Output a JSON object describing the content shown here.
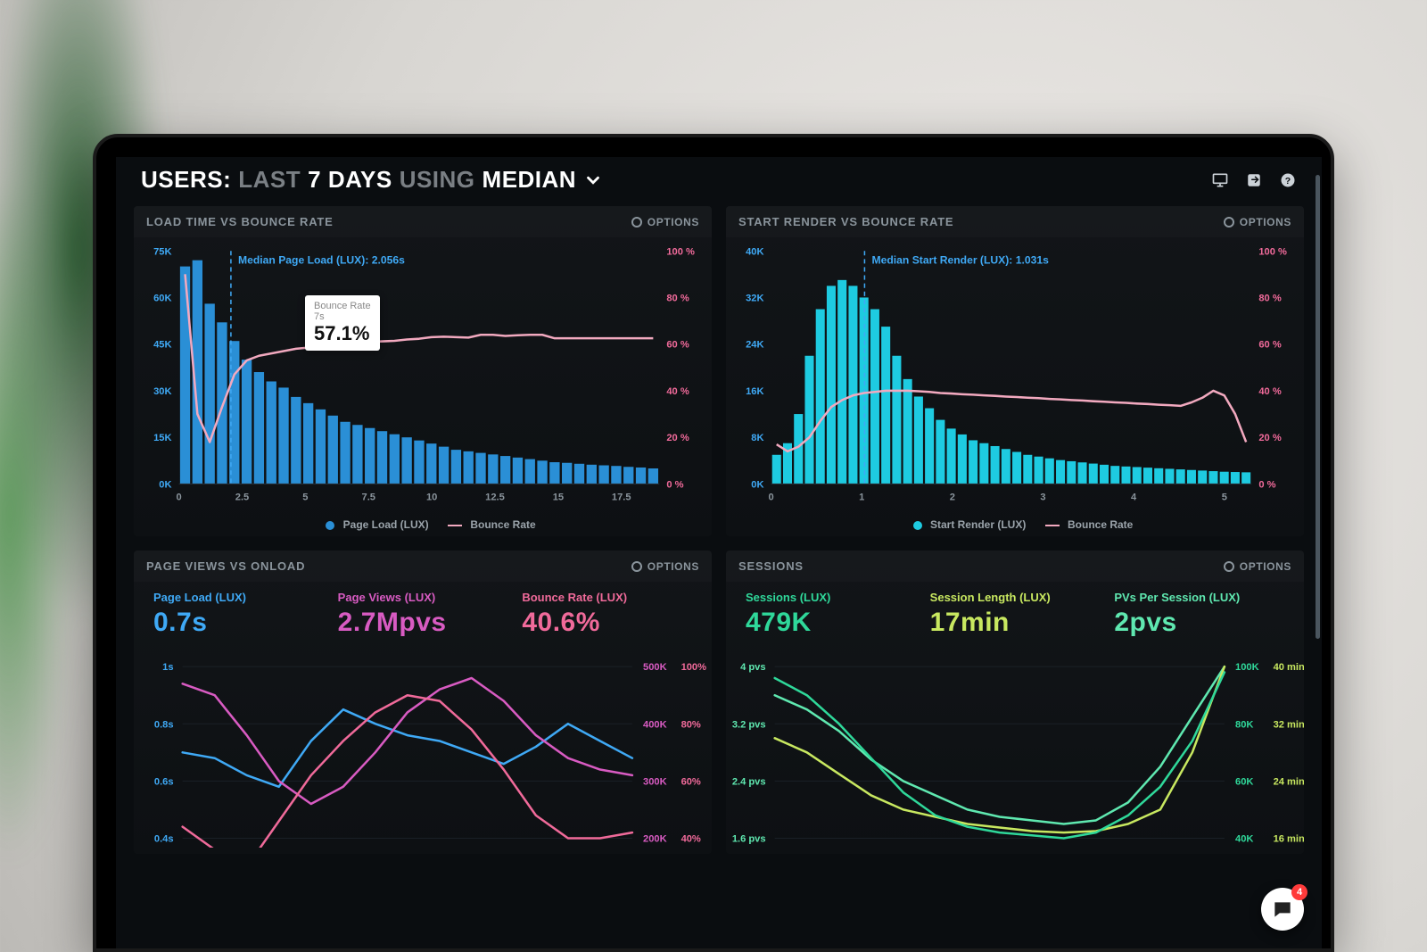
{
  "colors": {
    "bg": "#0a0d10",
    "panel": "#121518",
    "text_dim": "#8a949c",
    "axis": "#6a747c",
    "bar_blue": "#2a8fd6",
    "bar_cyan": "#1ecbe1",
    "line_pink": "#f2a9bf",
    "accent_pink": "#f06a9a",
    "accent_blue": "#3fa9f5",
    "accent_magenta": "#d85bc2",
    "accent_green_sessions": "#2fd89a",
    "accent_green_length": "#c8e860",
    "accent_green_pvs": "#5fe8b0"
  },
  "header": {
    "prefix": "USERS:",
    "dim1": "LAST",
    "bold1": "7 DAYS",
    "dim2": "USING",
    "bold2": "MEDIAN"
  },
  "chat_badge": "4",
  "panel1": {
    "title": "LOAD TIME VS BOUNCE RATE",
    "options": "OPTIONS",
    "y_left_label_top": "75K",
    "y_left_ticks": [
      0,
      15,
      30,
      45,
      60,
      75
    ],
    "y_left_unit": "K",
    "y_right_ticks": [
      0,
      20,
      40,
      60,
      80,
      100
    ],
    "y_right_unit": " %",
    "x_ticks": [
      0,
      2.5,
      5,
      7.5,
      10,
      12.5,
      15,
      17.5
    ],
    "marker_label": "Median Page Load (LUX): 2.056s",
    "marker_x": 2.056,
    "x_max": 19,
    "tooltip": {
      "line1": "Bounce Rate",
      "line2": "7s",
      "value": "57.1%"
    },
    "bars": [
      70,
      72,
      58,
      52,
      46,
      40,
      36,
      33,
      31,
      28,
      26,
      24,
      22,
      20,
      19,
      18,
      17,
      16,
      15,
      14,
      13,
      12,
      11,
      10.5,
      10,
      9.5,
      9,
      8.5,
      8,
      7.5,
      7,
      6.8,
      6.5,
      6.2,
      6,
      5.8,
      5.5,
      5.3,
      5
    ],
    "bar_max": 75,
    "line": [
      90,
      30,
      18,
      33,
      47,
      53,
      55,
      56,
      57,
      58,
      58.5,
      59,
      59.5,
      60,
      60.5,
      61,
      61.2,
      61.4,
      62,
      62.3,
      63,
      63.2,
      63,
      62.8,
      64,
      64,
      63.5,
      63.8,
      64,
      64,
      62.5,
      62.5,
      62.5,
      62.5,
      62.5,
      62.5,
      62.5,
      62.5,
      62.5
    ],
    "legend_bar": "Page Load (LUX)",
    "legend_line": "Bounce Rate"
  },
  "panel2": {
    "title": "START RENDER VS BOUNCE RATE",
    "options": "OPTIONS",
    "y_left_ticks": [
      0,
      8,
      16,
      24,
      32,
      40
    ],
    "y_left_unit": "K",
    "y_right_ticks": [
      0,
      20,
      40,
      60,
      80,
      100
    ],
    "y_right_unit": " %",
    "x_ticks": [
      0,
      1,
      2,
      3,
      4,
      5
    ],
    "marker_label": "Median Start Render (LUX): 1.031s",
    "marker_x": 1.031,
    "x_max": 5.3,
    "bars": [
      5,
      7,
      12,
      22,
      30,
      34,
      35,
      34,
      32,
      30,
      27,
      22,
      18,
      15,
      13,
      11,
      9.5,
      8.5,
      7.5,
      7,
      6.5,
      6,
      5.5,
      5,
      4.7,
      4.4,
      4.1,
      3.9,
      3.7,
      3.5,
      3.3,
      3.1,
      3,
      2.9,
      2.8,
      2.7,
      2.6,
      2.5,
      2.4,
      2.3,
      2.2,
      2.1,
      2.05,
      2
    ],
    "bar_max": 40,
    "line": [
      17,
      14,
      16,
      20,
      27,
      33,
      36,
      38,
      39,
      39.5,
      40,
      40,
      40,
      39.8,
      39.5,
      39,
      38.8,
      38.5,
      38.3,
      38,
      37.8,
      37.5,
      37.3,
      37,
      36.8,
      36.5,
      36.3,
      36,
      35.8,
      35.5,
      35.3,
      35,
      34.8,
      34.5,
      34.3,
      34,
      33.8,
      33.5,
      35,
      37,
      40,
      38,
      30,
      18
    ],
    "legend_bar": "Start Render (LUX)",
    "legend_line": "Bounce Rate"
  },
  "panel3": {
    "title": "PAGE VIEWS VS ONLOAD",
    "options": "OPTIONS",
    "metrics": [
      {
        "label": "Page Load (LUX)",
        "value": "0.7s",
        "color": "#3fa9f5"
      },
      {
        "label": "Page Views (LUX)",
        "value": "2.7Mpvs",
        "color": "#d85bc2"
      },
      {
        "label": "Bounce Rate (LUX)",
        "value": "40.6%",
        "color": "#f06a9a"
      }
    ],
    "y_left_ticks": [
      "1s",
      "0.8s",
      "0.6s",
      "0.4s"
    ],
    "y_left_color": "#3fa9f5",
    "y_right1_ticks": [
      "500K",
      "400K",
      "300K",
      "200K"
    ],
    "y_right1_color": "#d85bc2",
    "y_right2_ticks": [
      "100%",
      "80%",
      "60%",
      "40%"
    ],
    "y_right2_color": "#f06a9a",
    "lines": {
      "blue": [
        0.7,
        0.68,
        0.62,
        0.58,
        0.74,
        0.85,
        0.8,
        0.76,
        0.74,
        0.7,
        0.66,
        0.72,
        0.8,
        0.74,
        0.68
      ],
      "blue_range": [
        0.4,
        1.0
      ],
      "magenta": [
        470,
        450,
        380,
        300,
        260,
        290,
        350,
        420,
        460,
        480,
        440,
        380,
        340,
        320,
        310
      ],
      "magenta_range": [
        200,
        500
      ],
      "pink": [
        44,
        36,
        30,
        46,
        62,
        74,
        84,
        90,
        88,
        78,
        64,
        48,
        40,
        40,
        42
      ],
      "pink_range": [
        40,
        100
      ]
    }
  },
  "panel4": {
    "title": "SESSIONS",
    "options": "OPTIONS",
    "metrics": [
      {
        "label": "Sessions (LUX)",
        "value": "479K",
        "color": "#2fd89a"
      },
      {
        "label": "Session Length (LUX)",
        "value": "17min",
        "color": "#c8e860"
      },
      {
        "label": "PVs Per Session (LUX)",
        "value": "2pvs",
        "color": "#5fe8b0"
      }
    ],
    "y_left_ticks": [
      "4 pvs",
      "3.2 pvs",
      "2.4 pvs",
      "1.6 pvs"
    ],
    "y_left_color": "#5fe8b0",
    "y_right1_ticks": [
      "100K",
      "80K",
      "60K",
      "40K"
    ],
    "y_right1_color": "#2fd89a",
    "y_right2_ticks": [
      "40 min",
      "32 min",
      "24 min",
      "16 min"
    ],
    "y_right2_color": "#c8e860",
    "lines": {
      "teal": [
        3.6,
        3.4,
        3.1,
        2.7,
        2.4,
        2.2,
        2.0,
        1.9,
        1.85,
        1.8,
        1.85,
        2.1,
        2.6,
        3.3,
        4.0
      ],
      "teal_range": [
        1.6,
        4.0
      ],
      "lime": [
        30,
        28,
        25,
        22,
        20,
        19,
        18,
        17.5,
        17,
        16.8,
        17,
        18,
        20,
        28,
        40
      ],
      "lime_range": [
        16,
        40
      ],
      "green": [
        96,
        90,
        80,
        68,
        56,
        48,
        44,
        42,
        41,
        40,
        42,
        48,
        58,
        74,
        98
      ],
      "green_range": [
        40,
        100
      ]
    }
  }
}
